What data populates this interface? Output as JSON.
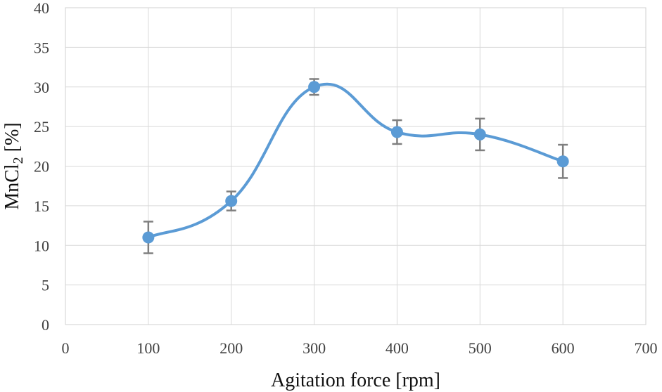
{
  "chart_data": {
    "type": "scatter",
    "title": "",
    "xlabel": "Agitation force [rpm]",
    "ylabel": {
      "main": "MnCl",
      "subscript": "2",
      "suffix": " [%]"
    },
    "xlim": [
      0,
      700
    ],
    "ylim": [
      0,
      40
    ],
    "x_ticks": [
      0,
      100,
      200,
      300,
      400,
      500,
      600,
      700
    ],
    "y_ticks": [
      0,
      5,
      10,
      15,
      20,
      25,
      30,
      35,
      40
    ],
    "grid": true,
    "smoothed_line": true,
    "series": [
      {
        "name": "MnCl2",
        "color": "#5b9bd5",
        "x": [
          100,
          200,
          300,
          400,
          500,
          600
        ],
        "y": [
          11.0,
          15.6,
          30.0,
          24.3,
          24.0,
          20.6
        ],
        "error": [
          2.0,
          1.2,
          1.0,
          1.5,
          2.0,
          2.1
        ]
      }
    ],
    "error_bar_color": "#7f7f7f"
  }
}
